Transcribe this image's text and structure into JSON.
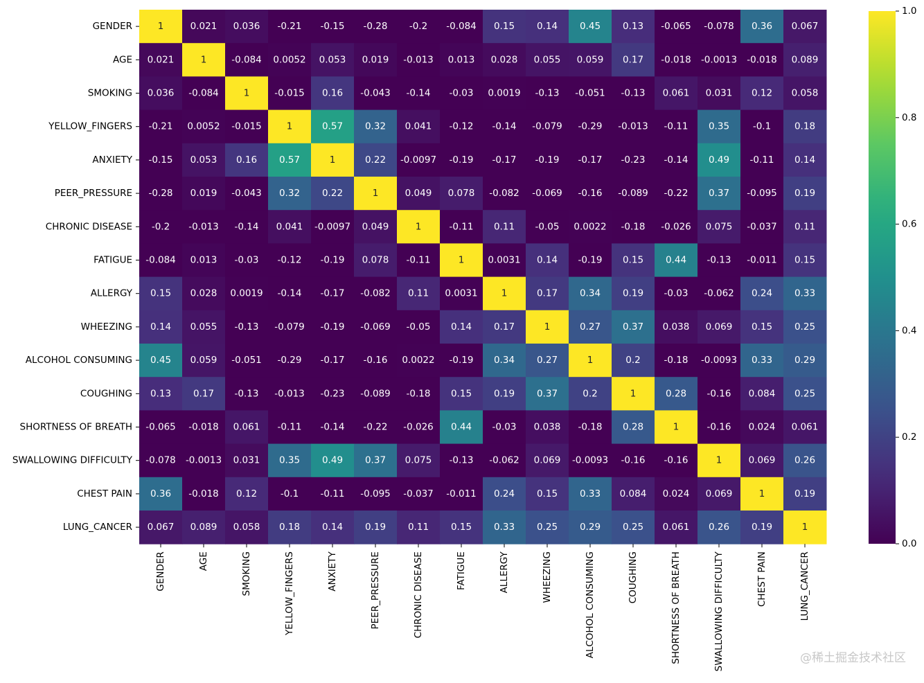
{
  "chart_data": {
    "type": "heatmap",
    "title": "",
    "xlabel": "",
    "ylabel": "",
    "labels": [
      "GENDER",
      "AGE",
      "SMOKING",
      "YELLOW_FINGERS",
      "ANXIETY",
      "PEER_PRESSURE",
      "CHRONIC DISEASE",
      "FATIGUE ",
      "ALLERGY ",
      "WHEEZING",
      "ALCOHOL CONSUMING",
      "COUGHING",
      "SHORTNESS OF BREATH",
      "SWALLOWING DIFFICULTY",
      "CHEST PAIN",
      "LUNG_CANCER"
    ],
    "matrix": [
      [
        "1",
        "0.021",
        "0.036",
        "-0.21",
        "-0.15",
        "-0.28",
        "-0.2",
        "-0.084",
        "0.15",
        "0.14",
        "0.45",
        "0.13",
        "-0.065",
        "-0.078",
        "0.36",
        "0.067"
      ],
      [
        "0.021",
        "1",
        "-0.084",
        "0.0052",
        "0.053",
        "0.019",
        "-0.013",
        "0.013",
        "0.028",
        "0.055",
        "0.059",
        "0.17",
        "-0.018",
        "-0.0013",
        "-0.018",
        "0.089"
      ],
      [
        "0.036",
        "-0.084",
        "1",
        "-0.015",
        "0.16",
        "-0.043",
        "-0.14",
        "-0.03",
        "0.0019",
        "-0.13",
        "-0.051",
        "-0.13",
        "0.061",
        "0.031",
        "0.12",
        "0.058"
      ],
      [
        "-0.21",
        "0.0052",
        "-0.015",
        "1",
        "0.57",
        "0.32",
        "0.041",
        "-0.12",
        "-0.14",
        "-0.079",
        "-0.29",
        "-0.013",
        "-0.11",
        "0.35",
        "-0.1",
        "0.18"
      ],
      [
        "-0.15",
        "0.053",
        "0.16",
        "0.57",
        "1",
        "0.22",
        "-0.0097",
        "-0.19",
        "-0.17",
        "-0.19",
        "-0.17",
        "-0.23",
        "-0.14",
        "0.49",
        "-0.11",
        "0.14"
      ],
      [
        "-0.28",
        "0.019",
        "-0.043",
        "0.32",
        "0.22",
        "1",
        "0.049",
        "0.078",
        "-0.082",
        "-0.069",
        "-0.16",
        "-0.089",
        "-0.22",
        "0.37",
        "-0.095",
        "0.19"
      ],
      [
        "-0.2",
        "-0.013",
        "-0.14",
        "0.041",
        "-0.0097",
        "0.049",
        "1",
        "-0.11",
        "0.11",
        "-0.05",
        "0.0022",
        "-0.18",
        "-0.026",
        "0.075",
        "-0.037",
        "0.11"
      ],
      [
        "-0.084",
        "0.013",
        "-0.03",
        "-0.12",
        "-0.19",
        "0.078",
        "-0.11",
        "1",
        "0.0031",
        "0.14",
        "-0.19",
        "0.15",
        "0.44",
        "-0.13",
        "-0.011",
        "0.15"
      ],
      [
        "0.15",
        "0.028",
        "0.0019",
        "-0.14",
        "-0.17",
        "-0.082",
        "0.11",
        "0.0031",
        "1",
        "0.17",
        "0.34",
        "0.19",
        "-0.03",
        "-0.062",
        "0.24",
        "0.33"
      ],
      [
        "0.14",
        "0.055",
        "-0.13",
        "-0.079",
        "-0.19",
        "-0.069",
        "-0.05",
        "0.14",
        "0.17",
        "1",
        "0.27",
        "0.37",
        "0.038",
        "0.069",
        "0.15",
        "0.25"
      ],
      [
        "0.45",
        "0.059",
        "-0.051",
        "-0.29",
        "-0.17",
        "-0.16",
        "0.0022",
        "-0.19",
        "0.34",
        "0.27",
        "1",
        "0.2",
        "-0.18",
        "-0.0093",
        "0.33",
        "0.29"
      ],
      [
        "0.13",
        "0.17",
        "-0.13",
        "-0.013",
        "-0.23",
        "-0.089",
        "-0.18",
        "0.15",
        "0.19",
        "0.37",
        "0.2",
        "1",
        "0.28",
        "-0.16",
        "0.084",
        "0.25"
      ],
      [
        "-0.065",
        "-0.018",
        "0.061",
        "-0.11",
        "-0.14",
        "-0.22",
        "-0.026",
        "0.44",
        "-0.03",
        "0.038",
        "-0.18",
        "0.28",
        "1",
        "-0.16",
        "0.024",
        "0.061"
      ],
      [
        "-0.078",
        "-0.0013",
        "0.031",
        "0.35",
        "0.49",
        "0.37",
        "0.075",
        "-0.13",
        "-0.062",
        "0.069",
        "-0.0093",
        "-0.16",
        "-0.16",
        "1",
        "0.069",
        "0.26"
      ],
      [
        "0.36",
        "-0.018",
        "0.12",
        "-0.1",
        "-0.11",
        "-0.095",
        "-0.037",
        "-0.011",
        "0.24",
        "0.15",
        "0.33",
        "0.084",
        "0.024",
        "0.069",
        "1",
        "0.19"
      ],
      [
        "0.067",
        "0.089",
        "0.058",
        "0.18",
        "0.14",
        "0.19",
        "0.11",
        "0.15",
        "0.33",
        "0.25",
        "0.29",
        "0.25",
        "0.061",
        "0.26",
        "0.19",
        "1"
      ]
    ],
    "colormap": "viridis",
    "vmin": 0.0,
    "vmax": 1.0,
    "colorbar_ticks": [
      "0.0",
      "0.2",
      "0.4",
      "0.6",
      "0.8",
      "1.0"
    ]
  },
  "watermark": "@稀土掘金技术社区"
}
